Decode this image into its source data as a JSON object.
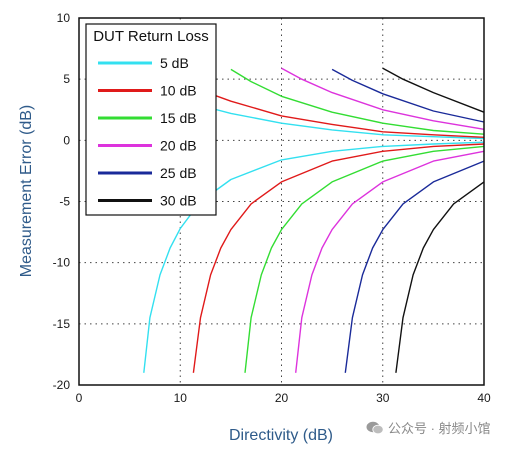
{
  "chart_data": {
    "type": "line",
    "xlabel": "Directivity (dB)",
    "ylabel": "Measurement Error (dB)",
    "xlim": [
      0,
      40
    ],
    "ylim": [
      -20,
      10
    ],
    "xticks": [
      0,
      10,
      20,
      30,
      40
    ],
    "yticks": [
      -20,
      -15,
      -10,
      -5,
      0,
      5,
      10
    ],
    "grid": true,
    "legend": {
      "title": "DUT Return Loss",
      "placement": "top-left"
    },
    "series": [
      {
        "name": "5 dB",
        "color": "#33e0f0",
        "upper": [
          [
            10,
            3.4
          ],
          [
            12,
            2.85
          ],
          [
            15,
            2.2
          ],
          [
            20,
            1.4
          ],
          [
            25,
            0.85
          ],
          [
            30,
            0.45
          ],
          [
            35,
            0.3
          ],
          [
            40,
            0.15
          ]
        ],
        "lower": [
          [
            6.4,
            -19
          ],
          [
            7,
            -14.5
          ],
          [
            8,
            -11
          ],
          [
            9,
            -8.8
          ],
          [
            10,
            -7.2
          ],
          [
            12,
            -5.0
          ],
          [
            15,
            -3.2
          ],
          [
            20,
            -1.6
          ],
          [
            25,
            -0.9
          ],
          [
            30,
            -0.5
          ],
          [
            35,
            -0.3
          ],
          [
            40,
            -0.15
          ]
        ]
      },
      {
        "name": "10 dB",
        "color": "#e01a1a",
        "upper": [
          [
            10,
            4.9
          ],
          [
            12,
            4.1
          ],
          [
            15,
            3.2
          ],
          [
            20,
            2.0
          ],
          [
            25,
            1.3
          ],
          [
            30,
            0.7
          ],
          [
            35,
            0.45
          ],
          [
            40,
            0.25
          ]
        ],
        "lower": [
          [
            11.3,
            -19
          ],
          [
            12,
            -14.5
          ],
          [
            13,
            -11
          ],
          [
            14,
            -8.8
          ],
          [
            15,
            -7.3
          ],
          [
            17,
            -5.2
          ],
          [
            20,
            -3.4
          ],
          [
            25,
            -1.7
          ],
          [
            30,
            -0.9
          ],
          [
            35,
            -0.5
          ],
          [
            40,
            -0.3
          ]
        ]
      },
      {
        "name": "15 dB",
        "color": "#33dd33",
        "upper": [
          [
            15,
            5.8
          ],
          [
            17,
            4.8
          ],
          [
            20,
            3.6
          ],
          [
            25,
            2.3
          ],
          [
            30,
            1.4
          ],
          [
            35,
            0.8
          ],
          [
            40,
            0.5
          ]
        ],
        "lower": [
          [
            16.4,
            -19
          ],
          [
            17,
            -14.5
          ],
          [
            18,
            -11
          ],
          [
            19,
            -8.8
          ],
          [
            20,
            -7.3
          ],
          [
            22,
            -5.2
          ],
          [
            25,
            -3.4
          ],
          [
            30,
            -1.7
          ],
          [
            35,
            -0.9
          ],
          [
            40,
            -0.5
          ]
        ]
      },
      {
        "name": "20 dB",
        "color": "#dd33dd",
        "upper": [
          [
            20,
            5.9
          ],
          [
            22,
            5.0
          ],
          [
            25,
            3.9
          ],
          [
            30,
            2.5
          ],
          [
            35,
            1.6
          ],
          [
            40,
            0.9
          ]
        ],
        "lower": [
          [
            21.4,
            -19
          ],
          [
            22,
            -14.5
          ],
          [
            23,
            -11
          ],
          [
            24,
            -8.8
          ],
          [
            25,
            -7.3
          ],
          [
            27,
            -5.2
          ],
          [
            30,
            -3.4
          ],
          [
            35,
            -1.7
          ],
          [
            40,
            -0.9
          ]
        ]
      },
      {
        "name": "25 dB",
        "color": "#1a2a99",
        "upper": [
          [
            25,
            5.8
          ],
          [
            27,
            4.9
          ],
          [
            30,
            3.8
          ],
          [
            35,
            2.4
          ],
          [
            40,
            1.5
          ]
        ],
        "lower": [
          [
            26.3,
            -19
          ],
          [
            27,
            -14.5
          ],
          [
            28,
            -11
          ],
          [
            29,
            -8.8
          ],
          [
            30,
            -7.3
          ],
          [
            32,
            -5.2
          ],
          [
            35,
            -3.4
          ],
          [
            40,
            -1.7
          ]
        ]
      },
      {
        "name": "30 dB",
        "color": "#111111",
        "upper": [
          [
            30,
            5.9
          ],
          [
            32,
            5.0
          ],
          [
            35,
            3.9
          ],
          [
            40,
            2.3
          ]
        ],
        "lower": [
          [
            31.3,
            -19
          ],
          [
            32,
            -14.5
          ],
          [
            33,
            -11
          ],
          [
            34,
            -8.8
          ],
          [
            35,
            -7.3
          ],
          [
            37,
            -5.2
          ],
          [
            40,
            -3.4
          ]
        ]
      }
    ]
  },
  "watermark": {
    "text": "公众号 · 射频小馆"
  }
}
